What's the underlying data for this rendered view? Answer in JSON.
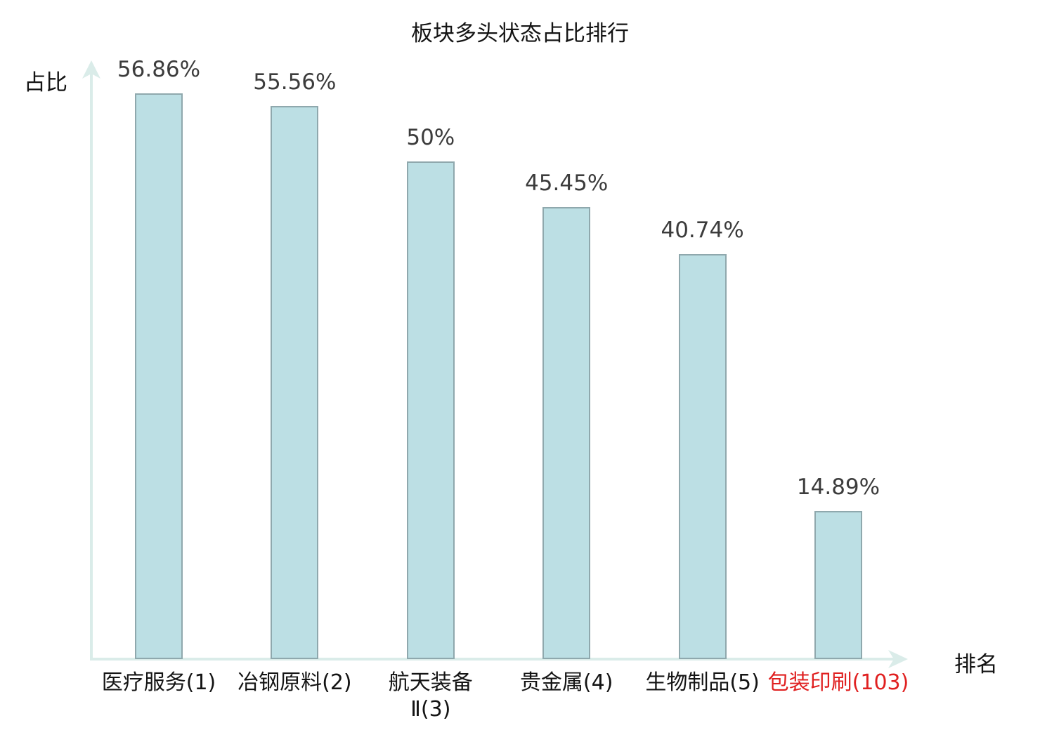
{
  "chart_data": {
    "type": "bar",
    "title": "板块多头状态占比排行",
    "xlabel": "排名",
    "ylabel": "占比",
    "categories": [
      "医疗服务(1)",
      "冶钢原料(2)",
      "航天装备\nⅡ(3)",
      "贵金属(4)",
      "生物制品(5)",
      "包装印刷(103)"
    ],
    "values": [
      56.86,
      55.56,
      50,
      45.45,
      40.74,
      14.89
    ],
    "value_labels": [
      "56.86%",
      "55.56%",
      "50%",
      "45.45%",
      "40.74%",
      "14.89%"
    ],
    "category_colors": [
      "#141414",
      "#141414",
      "#141414",
      "#141414",
      "#141414",
      "#e02020"
    ],
    "ylim": [
      0,
      60
    ],
    "grid": false,
    "legend": null,
    "layout_hint": "bars on axis with arrow-tipped x and y axes, value labels above bars, no tick marks",
    "colors": {
      "bar_fill": "#bcdfe4",
      "bar_border": "#8fa8ad",
      "axis": "#daece9",
      "value_label": "#3c3c3c",
      "text": "#141414",
      "highlight": "#e02020"
    }
  }
}
